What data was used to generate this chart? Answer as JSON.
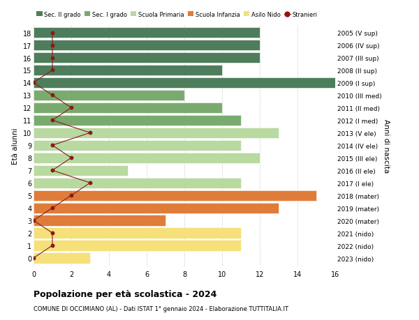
{
  "ages": [
    18,
    17,
    16,
    15,
    14,
    13,
    12,
    11,
    10,
    9,
    8,
    7,
    6,
    5,
    4,
    3,
    2,
    1,
    0
  ],
  "right_labels": [
    "2005 (V sup)",
    "2006 (IV sup)",
    "2007 (III sup)",
    "2008 (II sup)",
    "2009 (I sup)",
    "2010 (III med)",
    "2011 (II med)",
    "2012 (I med)",
    "2013 (V ele)",
    "2014 (IV ele)",
    "2015 (III ele)",
    "2016 (II ele)",
    "2017 (I ele)",
    "2018 (mater)",
    "2019 (mater)",
    "2020 (mater)",
    "2021 (nido)",
    "2022 (nido)",
    "2023 (nido)"
  ],
  "bar_values": [
    12,
    12,
    12,
    10,
    16,
    8,
    10,
    11,
    13,
    11,
    12,
    5,
    11,
    15,
    13,
    7,
    11,
    11,
    3
  ],
  "bar_colors": [
    "#4e7d5b",
    "#4e7d5b",
    "#4e7d5b",
    "#4e7d5b",
    "#4e7d5b",
    "#7aab6e",
    "#7aab6e",
    "#7aab6e",
    "#b8d9a0",
    "#b8d9a0",
    "#b8d9a0",
    "#b8d9a0",
    "#b8d9a0",
    "#e07c39",
    "#e07c39",
    "#e07c39",
    "#f5e07a",
    "#f5e07a",
    "#f5e07a"
  ],
  "stranieri_values": [
    1,
    1,
    1,
    1,
    0,
    1,
    2,
    1,
    3,
    1,
    2,
    1,
    3,
    2,
    1,
    0,
    1,
    1,
    0
  ],
  "stranieri_color": "#8b1a1a",
  "title": "Popolazione per età scolastica - 2024",
  "subtitle": "COMUNE DI OCCIMIANO (AL) - Dati ISTAT 1° gennaio 2024 - Elaborazione TUTTITALIA.IT",
  "ylabel": "Età alunni",
  "right_ylabel": "Anni di nascita",
  "xlim": [
    0,
    16
  ],
  "xticks": [
    0,
    2,
    4,
    6,
    8,
    10,
    12,
    14,
    16
  ],
  "legend_items": [
    {
      "label": "Sec. II grado",
      "color": "#4e7d5b",
      "type": "patch"
    },
    {
      "label": "Sec. I grado",
      "color": "#7aab6e",
      "type": "patch"
    },
    {
      "label": "Scuola Primaria",
      "color": "#b8d9a0",
      "type": "patch"
    },
    {
      "label": "Scuola Infanzia",
      "color": "#e07c39",
      "type": "patch"
    },
    {
      "label": "Asilo Nido",
      "color": "#f5e07a",
      "type": "patch"
    },
    {
      "label": "Stranieri",
      "color": "#8b1a1a",
      "type": "dot"
    }
  ],
  "bg_color": "#ffffff",
  "grid_color": "#d0d0d0",
  "bar_edge_color": "#ffffff",
  "bar_height": 0.85
}
